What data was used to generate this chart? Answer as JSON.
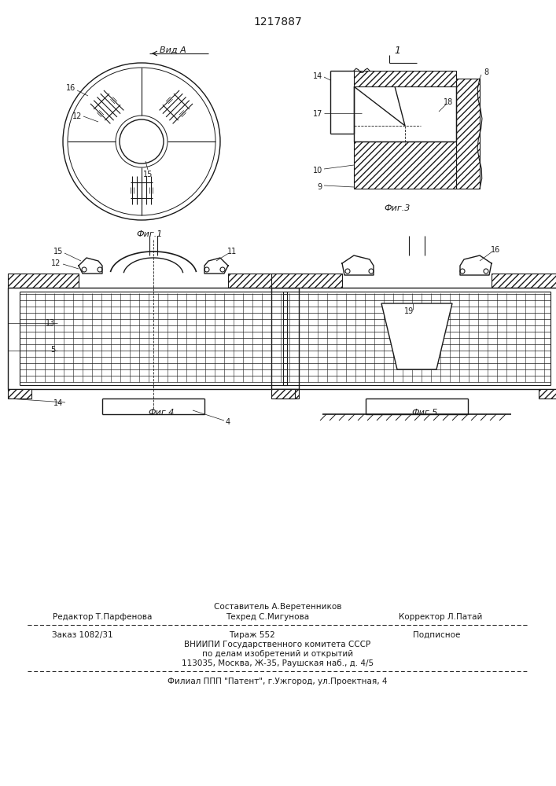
{
  "patent_number": "1217887",
  "bg_color": "#ffffff",
  "line_color": "#1a1a1a",
  "fig_width": 7.07,
  "fig_height": 10.0,
  "footer": {
    "sostavitel": "Составитель А.Веретенников",
    "redaktor": "Редактор Т.Парфенова",
    "tekhred": "Техред С.Мигунова",
    "korrektor": "Корректор Л.Патай",
    "zakaz": "Заказ 1082/31",
    "tirazh": "Тираж 552",
    "podpisnoe": "Подписное",
    "vniiipi": "ВНИИПИ Государственного комитета СССР",
    "po_delam": "по делам изобретений и открытий",
    "address": "113035, Москва, Ж-35, Раушская наб., д. 4/5",
    "filial": "Филиал ППП \"Патент\", г.Ужгород, ул.Проектная, 4"
  },
  "fig_labels": {
    "fig1": "Фиг.1",
    "fig3": "Фиг.3",
    "fig4": "Фиг.4",
    "fig5": "Фиг.5",
    "vid_a": "Вид А",
    "label_1": "1"
  }
}
